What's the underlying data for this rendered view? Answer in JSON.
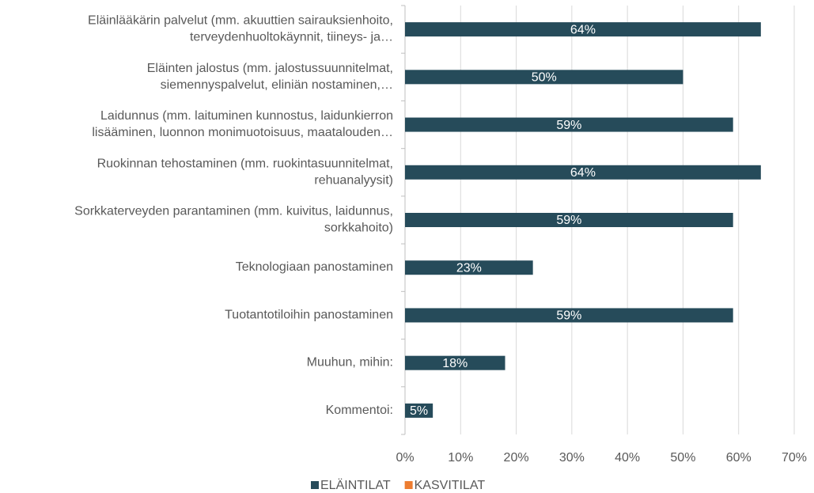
{
  "chart_data": {
    "type": "barh",
    "categories": [
      "Eläinlääkärin palvelut (mm. akuuttien sairauksienhoito,\nterveydenhuoltokäynnit, tiineys- ja…",
      "Eläinten jalostus (mm. jalostussuunnitelmat,\nsiemennyspalvelut, eliniän nostaminen,…",
      "Laidunnus (mm. laituminen kunnostus, laidunkierron\nlisääminen, luonnon monimuotoisuus, maatalouden…",
      "Ruokinnan tehostaminen (mm. ruokintasuunnitelmat,\nrehuanalyysit)",
      "Sorkkaterveyden parantaminen (mm. kuivitus, laidunnus,\nsorkkahoito)",
      "Teknologiaan panostaminen",
      "Tuotantotiloihin panostaminen",
      "Muuhun, mihin:",
      "Kommentoi:"
    ],
    "series": [
      {
        "name": "ELÄINTILAT",
        "color": "#264b5a",
        "values": [
          64,
          50,
          59,
          64,
          59,
          23,
          59,
          18,
          5
        ],
        "value_labels": [
          "64%",
          "50%",
          "59%",
          "64%",
          "59%",
          "23%",
          "59%",
          "18%",
          "5%"
        ]
      },
      {
        "name": "KASVITILAT",
        "color": "#ed7d31",
        "values": [
          null,
          null,
          null,
          null,
          null,
          null,
          null,
          null,
          null
        ]
      }
    ],
    "xlim": [
      0,
      70
    ],
    "xticks": [
      {
        "value": 0,
        "label": "0%"
      },
      {
        "value": 10,
        "label": "10%"
      },
      {
        "value": 20,
        "label": "20%"
      },
      {
        "value": 30,
        "label": "30%"
      },
      {
        "value": 40,
        "label": "40%"
      },
      {
        "value": 50,
        "label": "50%"
      },
      {
        "value": 60,
        "label": "60%"
      },
      {
        "value": 70,
        "label": "70%"
      }
    ],
    "grid": true,
    "legend": "bottom"
  }
}
